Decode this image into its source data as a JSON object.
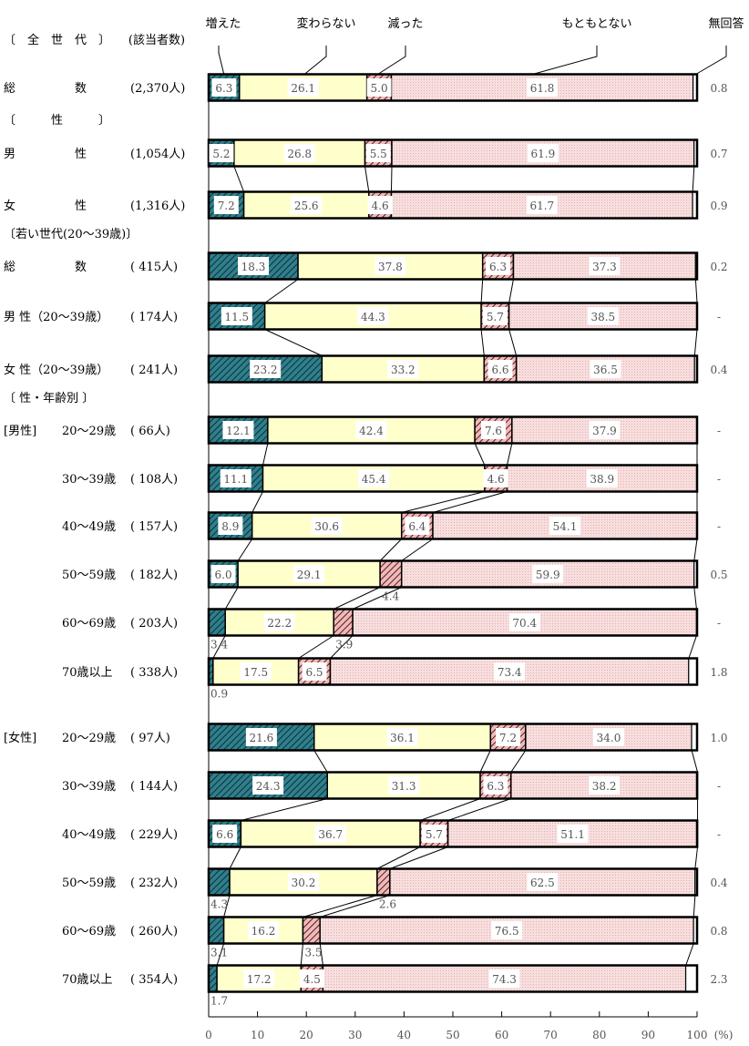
{
  "chart_data": {
    "type": "bar",
    "orientation": "horizontal-stacked-100",
    "count_header": "(該当者数)",
    "unit": "(%)",
    "xlim": [
      0,
      100
    ],
    "x_ticks": [
      "0",
      "10",
      "20",
      "30",
      "40",
      "50",
      "60",
      "70",
      "80",
      "90",
      "100"
    ],
    "series": [
      {
        "name": "増えた",
        "color": "#2f7f8c"
      },
      {
        "name": "変わらない",
        "color": "#ffffcc"
      },
      {
        "name": "減った",
        "color": "#e8a8a8"
      },
      {
        "name": "もともとない",
        "color": "#f6dcdc"
      },
      {
        "name": "無回答",
        "color": "#ffffff"
      }
    ],
    "sections": [
      {
        "label": "〔　全　世　代　〕",
        "group_label": ""
      },
      {
        "label": "〔　　　性　　　〕",
        "group_label": ""
      },
      {
        "label": "〔若い世代(20～39歳)〕",
        "group_label": ""
      },
      {
        "label": "〔 性・年齢別 〕",
        "group_label": "[男性]"
      },
      {
        "label": "",
        "group_label": "[女性]"
      }
    ],
    "rows": [
      {
        "section": 0,
        "label": "総　　　　　数",
        "n": "(2,370人)",
        "values": [
          6.3,
          26.1,
          5.0,
          61.8,
          0.8
        ]
      },
      {
        "section": 1,
        "label": "男　　　　　性",
        "n": "(1,054人)",
        "values": [
          5.2,
          26.8,
          5.5,
          61.9,
          0.7
        ]
      },
      {
        "section": 1,
        "label": "女　　　　　性",
        "n": "(1,316人)",
        "values": [
          7.2,
          25.6,
          4.6,
          61.7,
          0.9
        ]
      },
      {
        "section": 2,
        "label": "総　　　　　数",
        "n": "( 415人)",
        "values": [
          18.3,
          37.8,
          6.3,
          37.3,
          0.2
        ]
      },
      {
        "section": 2,
        "label": "男 性（20～39歳）",
        "n": "( 174人)",
        "values": [
          11.5,
          44.3,
          5.7,
          38.5,
          null
        ]
      },
      {
        "section": 2,
        "label": "女 性（20～39歳）",
        "n": "( 241人)",
        "values": [
          23.2,
          33.2,
          6.6,
          36.5,
          0.4
        ]
      },
      {
        "section": 3,
        "label": "20～29歳",
        "n": "(  66人)",
        "values": [
          12.1,
          42.4,
          7.6,
          37.9,
          null
        ]
      },
      {
        "section": 3,
        "label": "30～39歳",
        "n": "( 108人)",
        "values": [
          11.1,
          45.4,
          4.6,
          38.9,
          null
        ]
      },
      {
        "section": 3,
        "label": "40～49歳",
        "n": "( 157人)",
        "values": [
          8.9,
          30.6,
          6.4,
          54.1,
          null
        ]
      },
      {
        "section": 3,
        "label": "50～59歳",
        "n": "( 182人)",
        "values": [
          6.0,
          29.1,
          4.4,
          59.9,
          0.5
        ]
      },
      {
        "section": 3,
        "label": "60～69歳",
        "n": "( 203人)",
        "values": [
          3.4,
          22.2,
          3.9,
          70.4,
          null
        ]
      },
      {
        "section": 3,
        "label": "70歳以上",
        "n": "( 338人)",
        "values": [
          0.9,
          17.5,
          6.5,
          73.4,
          1.8
        ]
      },
      {
        "section": 4,
        "label": "20～29歳",
        "n": "(  97人)",
        "values": [
          21.6,
          36.1,
          7.2,
          34.0,
          1.0
        ]
      },
      {
        "section": 4,
        "label": "30～39歳",
        "n": "( 144人)",
        "values": [
          24.3,
          31.3,
          6.3,
          38.2,
          null
        ]
      },
      {
        "section": 4,
        "label": "40～49歳",
        "n": "( 229人)",
        "values": [
          6.6,
          36.7,
          5.7,
          51.1,
          null
        ]
      },
      {
        "section": 4,
        "label": "50～59歳",
        "n": "( 232人)",
        "values": [
          4.3,
          30.2,
          2.6,
          62.5,
          0.4
        ]
      },
      {
        "section": 4,
        "label": "60～69歳",
        "n": "( 260人)",
        "values": [
          3.1,
          16.2,
          3.5,
          76.5,
          0.8
        ]
      },
      {
        "section": 4,
        "label": "70歳以上",
        "n": "( 354人)",
        "values": [
          1.7,
          17.2,
          4.5,
          74.3,
          2.3
        ]
      }
    ],
    "missing_mark": "-"
  }
}
